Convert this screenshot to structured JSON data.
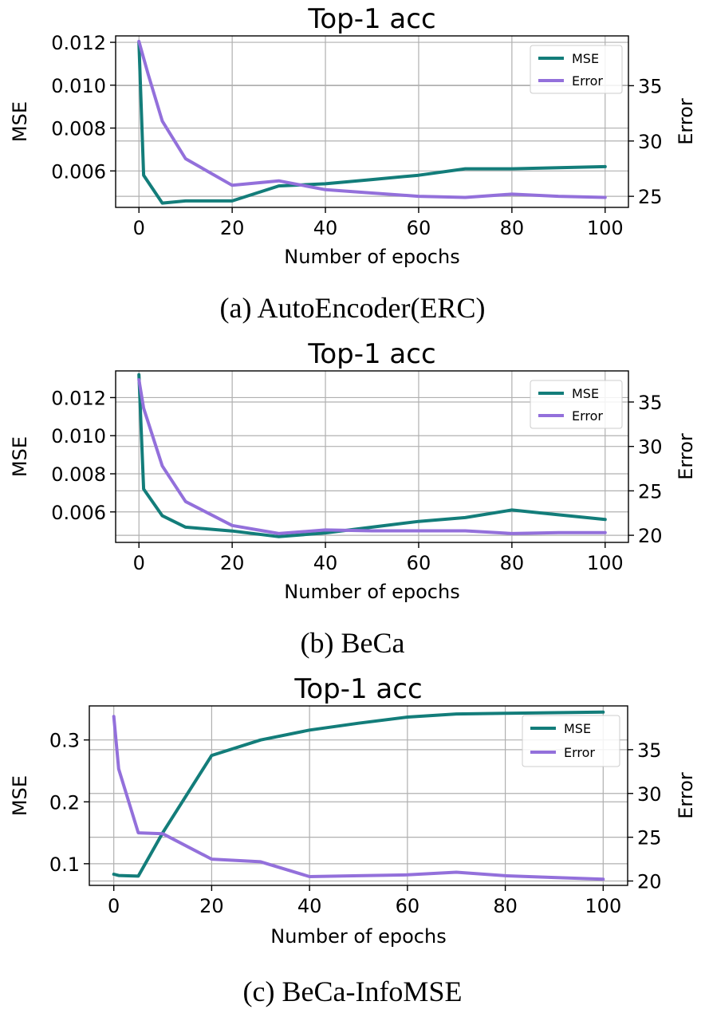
{
  "chart_data": [
    {
      "type": "line",
      "title": "Top-1 acc",
      "xlabel": "Number of epochs",
      "ylabel": "MSE",
      "y2label": "Error",
      "caption": "(a) AutoEncoder(ERC)",
      "xlim": [
        -5,
        105
      ],
      "ylim": [
        0.0043,
        0.0123
      ],
      "y2lim": [
        24.0,
        39.5
      ],
      "xticks": [
        0,
        20,
        40,
        60,
        80,
        100
      ],
      "xtick_labels": [
        "0",
        "20",
        "40",
        "60",
        "80",
        "100"
      ],
      "yticks": [
        0.006,
        0.008,
        0.01,
        0.012
      ],
      "ytick_labels": [
        "0.006",
        "0.008",
        "0.010",
        "0.012"
      ],
      "y2ticks": [
        25,
        30,
        35
      ],
      "y2tick_labels": [
        "25",
        "30",
        "35"
      ],
      "grid": true,
      "legend_position": "top-right",
      "series": [
        {
          "name": "MSE",
          "axis": "left",
          "color": "#137d7a",
          "x": [
            0,
            1,
            5,
            10,
            20,
            30,
            40,
            50,
            60,
            70,
            80,
            90,
            100
          ],
          "y": [
            0.012,
            0.0058,
            0.0045,
            0.0046,
            0.0046,
            0.0053,
            0.0054,
            0.0056,
            0.0058,
            0.0061,
            0.0061,
            0.00615,
            0.0062
          ]
        },
        {
          "name": "Error",
          "axis": "right",
          "color": "#9370db",
          "x": [
            0,
            2,
            5,
            10,
            20,
            30,
            40,
            50,
            60,
            70,
            80,
            90,
            100
          ],
          "y": [
            39.0,
            36.0,
            31.8,
            28.4,
            26.0,
            26.4,
            25.6,
            25.3,
            25.0,
            24.9,
            25.2,
            25.0,
            24.9
          ]
        }
      ]
    },
    {
      "type": "line",
      "title": "Top-1 acc",
      "xlabel": "Number of epochs",
      "ylabel": "MSE",
      "y2label": "Error",
      "caption": "(b) BeCa",
      "xlim": [
        -5,
        105
      ],
      "ylim": [
        0.0044,
        0.0134
      ],
      "y2lim": [
        19.2,
        38.5
      ],
      "xticks": [
        0,
        20,
        40,
        60,
        80,
        100
      ],
      "xtick_labels": [
        "0",
        "20",
        "40",
        "60",
        "80",
        "100"
      ],
      "yticks": [
        0.006,
        0.008,
        0.01,
        0.012
      ],
      "ytick_labels": [
        "0.006",
        "0.008",
        "0.010",
        "0.012"
      ],
      "y2ticks": [
        20,
        25,
        30,
        35
      ],
      "y2tick_labels": [
        "20",
        "25",
        "30",
        "35"
      ],
      "grid": true,
      "legend_position": "top-right",
      "series": [
        {
          "name": "MSE",
          "axis": "left",
          "color": "#137d7a",
          "x": [
            0,
            1,
            5,
            10,
            20,
            30,
            40,
            50,
            60,
            70,
            80,
            90,
            100
          ],
          "y": [
            0.0132,
            0.0072,
            0.0058,
            0.0052,
            0.005,
            0.0047,
            0.0049,
            0.0052,
            0.0055,
            0.0057,
            0.0061,
            0.00585,
            0.0056
          ]
        },
        {
          "name": "Error",
          "axis": "right",
          "color": "#9370db",
          "x": [
            0,
            1,
            5,
            10,
            20,
            30,
            40,
            50,
            60,
            70,
            80,
            90,
            100
          ],
          "y": [
            37.5,
            34.3,
            27.8,
            23.8,
            21.1,
            20.2,
            20.6,
            20.5,
            20.5,
            20.5,
            20.2,
            20.3,
            20.3
          ]
        }
      ]
    },
    {
      "type": "line",
      "title": "Top-1 acc",
      "xlabel": "Number of epochs",
      "ylabel": "MSE",
      "y2label": "Error",
      "caption": "(c) BeCa-InfoMSE",
      "xlim": [
        -5,
        105
      ],
      "ylim": [
        0.065,
        0.355
      ],
      "y2lim": [
        19.5,
        40.0
      ],
      "xticks": [
        0,
        20,
        40,
        60,
        80,
        100
      ],
      "xtick_labels": [
        "0",
        "20",
        "40",
        "60",
        "80",
        "100"
      ],
      "yticks": [
        0.1,
        0.2,
        0.3
      ],
      "ytick_labels": [
        "0.1",
        "0.2",
        "0.3"
      ],
      "y2ticks": [
        20,
        25,
        30,
        35
      ],
      "y2tick_labels": [
        "20",
        "25",
        "30",
        "35"
      ],
      "grid": true,
      "legend_position": "top-right",
      "series": [
        {
          "name": "MSE",
          "axis": "left",
          "color": "#137d7a",
          "x": [
            0,
            1,
            5,
            10,
            20,
            30,
            40,
            50,
            60,
            70,
            80,
            90,
            100
          ],
          "y": [
            0.083,
            0.081,
            0.08,
            0.15,
            0.275,
            0.3,
            0.316,
            0.327,
            0.337,
            0.342,
            0.343,
            0.344,
            0.345
          ]
        },
        {
          "name": "Error",
          "axis": "right",
          "color": "#9370db",
          "x": [
            0,
            1,
            5,
            10,
            20,
            30,
            40,
            50,
            60,
            70,
            80,
            90,
            100
          ],
          "y": [
            38.8,
            32.8,
            25.5,
            25.4,
            22.5,
            22.2,
            20.5,
            20.6,
            20.7,
            21.0,
            20.6,
            20.4,
            20.2
          ]
        }
      ]
    }
  ]
}
